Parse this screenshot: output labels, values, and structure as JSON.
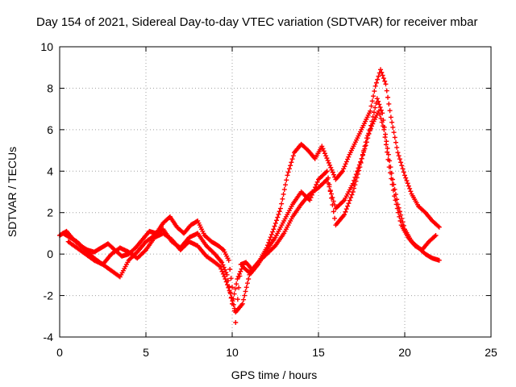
{
  "chart_data": {
    "type": "scatter",
    "title": "Day 154 of 2021, Sidereal Day-to-day VTEC variation (SDTVAR) for receiver mbar",
    "xlabel": "GPS time / hours",
    "ylabel": "SDTVAR / TECUs",
    "xlim": [
      0,
      25
    ],
    "ylim": [
      -4,
      10
    ],
    "x_ticks": [
      "0",
      "5",
      "10",
      "15",
      "20",
      "25"
    ],
    "y_ticks": [
      "-4",
      "-2",
      "0",
      "2",
      "4",
      "6",
      "8",
      "10"
    ],
    "grid": true,
    "marker": "+",
    "color": "#ff0000",
    "series": [
      {
        "x": [
          0.0,
          0.4,
          0.8,
          1.2,
          1.6,
          2.0,
          2.4,
          2.8,
          3.2,
          3.6,
          4.0,
          4.4,
          4.8,
          5.2,
          5.6,
          6.0,
          6.4,
          6.8,
          7.2,
          7.6,
          8.0,
          8.4,
          8.8,
          9.2,
          9.5,
          9.8,
          10.0,
          10.2,
          10.5,
          10.8,
          11.2,
          11.6,
          12.0,
          12.4,
          12.8,
          13.2,
          13.6,
          14.0,
          14.4,
          14.8,
          15.2,
          15.6,
          16.0,
          16.4,
          16.8,
          17.2,
          17.6,
          18.0,
          18.3,
          18.6,
          18.9,
          19.2,
          19.6,
          20.0,
          20.4,
          20.8,
          21.2,
          21.6,
          22.0
        ],
        "y": [
          0.9,
          1.1,
          0.7,
          0.4,
          0.2,
          0.1,
          0.3,
          0.5,
          0.2,
          -0.1,
          0.0,
          0.3,
          0.7,
          1.1,
          1.0,
          1.5,
          1.8,
          1.3,
          1.0,
          1.4,
          1.6,
          0.9,
          0.6,
          0.4,
          0.2,
          -0.3,
          -1.6,
          -3.3,
          -0.5,
          -0.4,
          -0.8,
          -0.3,
          0.3,
          1.2,
          2.2,
          3.8,
          4.9,
          5.3,
          5.0,
          4.6,
          5.2,
          4.4,
          3.6,
          4.0,
          4.8,
          5.5,
          6.2,
          6.9,
          8.1,
          8.9,
          8.2,
          6.6,
          4.9,
          3.8,
          2.9,
          2.3,
          2.0,
          1.6,
          1.3
        ]
      },
      {
        "x": [
          0.2,
          0.6,
          1.0,
          1.5,
          2.0,
          2.5,
          3.0,
          3.5,
          4.0,
          4.5,
          5.0,
          5.5,
          6.0,
          6.5,
          7.0,
          7.5,
          8.0,
          8.5,
          9.0,
          9.4,
          9.7,
          10.0,
          10.3,
          10.6,
          11.0,
          11.5,
          12.0,
          12.5,
          13.0,
          13.5,
          14.0,
          14.5,
          15.0,
          15.5,
          16.0,
          16.5,
          17.0,
          17.5,
          17.8,
          18.1,
          18.4,
          18.7,
          19.0,
          19.3,
          19.6,
          20.0,
          20.4,
          20.8,
          21.2,
          21.6,
          22.0
        ],
        "y": [
          1.0,
          0.8,
          0.6,
          0.2,
          -0.2,
          -0.5,
          -0.8,
          -1.1,
          -0.3,
          0.1,
          0.6,
          0.9,
          1.2,
          0.6,
          0.3,
          0.8,
          1.0,
          0.4,
          0.0,
          -0.4,
          -1.0,
          -2.4,
          -1.2,
          -0.6,
          -0.9,
          -0.4,
          0.0,
          0.4,
          1.0,
          1.8,
          2.4,
          2.9,
          3.2,
          3.6,
          2.2,
          2.6,
          3.4,
          4.6,
          5.4,
          6.4,
          7.5,
          6.8,
          5.1,
          3.6,
          2.4,
          1.2,
          0.6,
          0.3,
          0.0,
          -0.2,
          -0.3
        ]
      },
      {
        "x": [
          0.5,
          1.0,
          1.5,
          2.0,
          2.5,
          3.0,
          3.5,
          4.0,
          4.5,
          5.0,
          5.5,
          6.0,
          6.5,
          7.0,
          7.5,
          8.0,
          8.5,
          9.0,
          9.3,
          9.6,
          9.9,
          10.2,
          10.6,
          11.0,
          11.5,
          12.0,
          12.5,
          13.0,
          13.5,
          14.0,
          14.5,
          15.0,
          15.5,
          16.0,
          16.5,
          17.0,
          17.4,
          17.8,
          18.2,
          18.5,
          18.8,
          19.1,
          19.4,
          19.8,
          20.2,
          20.6,
          21.0,
          21.4,
          21.8
        ],
        "y": [
          0.6,
          0.3,
          0.0,
          -0.3,
          -0.5,
          0.0,
          0.3,
          0.1,
          -0.2,
          0.2,
          0.8,
          1.0,
          0.7,
          0.2,
          0.6,
          0.4,
          -0.1,
          -0.4,
          -0.6,
          -1.2,
          -1.9,
          -2.8,
          -2.4,
          -1.0,
          -0.5,
          0.2,
          0.8,
          1.6,
          2.4,
          3.0,
          2.6,
          3.6,
          4.0,
          1.4,
          1.9,
          3.0,
          4.2,
          5.6,
          6.4,
          6.9,
          6.0,
          4.2,
          2.8,
          1.4,
          0.8,
          0.4,
          0.2,
          0.6,
          0.9
        ]
      }
    ]
  }
}
